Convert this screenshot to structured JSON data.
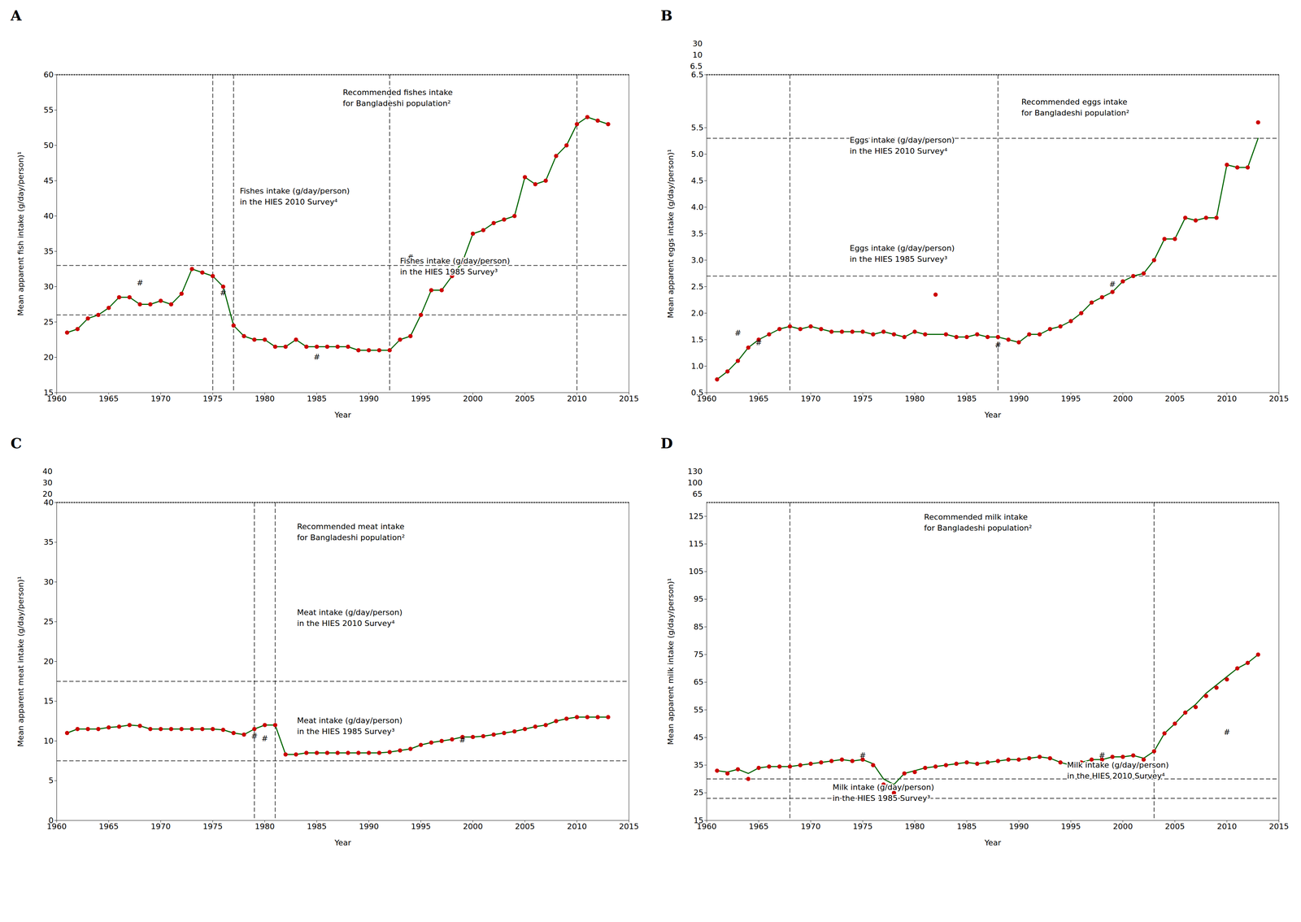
{
  "chart_data": [
    {
      "type": "line",
      "title": "A",
      "xlabel": "Year",
      "ylabel": "Mean apparent fish intake (g/day/person)¹",
      "xlim": [
        1960,
        2015
      ],
      "xticks": [
        1960,
        1965,
        1970,
        1975,
        1980,
        1985,
        1990,
        1995,
        2000,
        2005,
        2010,
        2015
      ],
      "ylim": [
        15,
        60
      ],
      "yticks": [
        15,
        20,
        25,
        30,
        35,
        40,
        45,
        50,
        55,
        60
      ],
      "grid": false,
      "x": [
        1961,
        1962,
        1963,
        1964,
        1965,
        1966,
        1967,
        1968,
        1969,
        1970,
        1971,
        1972,
        1973,
        1974,
        1975,
        1976,
        1977,
        1978,
        1979,
        1980,
        1981,
        1982,
        1983,
        1984,
        1985,
        1986,
        1987,
        1988,
        1989,
        1990,
        1991,
        1992,
        1993,
        1994,
        1995,
        1996,
        1997,
        1998,
        1999,
        2000,
        2001,
        2002,
        2003,
        2004,
        2005,
        2006,
        2007,
        2008,
        2009,
        2010,
        2011,
        2012,
        2013
      ],
      "series": [
        {
          "type": "line",
          "color": "#006400",
          "values": [
            23.5,
            24.0,
            25.5,
            26.0,
            27.0,
            28.5,
            28.5,
            27.5,
            27.5,
            28.0,
            27.5,
            29.0,
            32.5,
            32.0,
            31.5,
            30.0,
            24.5,
            23.0,
            22.5,
            22.5,
            21.5,
            21.5,
            22.5,
            21.5,
            21.5,
            21.5,
            21.5,
            21.5,
            21.0,
            21.0,
            21.0,
            21.0,
            22.5,
            23.0,
            26.0,
            29.5,
            29.5,
            31.5,
            33.5,
            37.5,
            38.0,
            39.0,
            39.5,
            40.0,
            45.5,
            44.5,
            45.0,
            48.5,
            50.0,
            53.0,
            54.0,
            53.5,
            53.0
          ]
        },
        {
          "type": "scatter",
          "color": "#cc0000",
          "values": [
            23.5,
            24.0,
            25.5,
            26.0,
            27.0,
            28.5,
            28.5,
            27.5,
            27.5,
            28.0,
            27.5,
            29.0,
            32.5,
            32.0,
            31.5,
            30.0,
            24.5,
            23.0,
            22.5,
            22.5,
            21.5,
            21.5,
            22.5,
            21.5,
            21.5,
            21.5,
            21.5,
            21.5,
            21.0,
            21.0,
            21.0,
            21.0,
            22.5,
            23.0,
            26.0,
            29.5,
            29.5,
            31.5,
            33.5,
            37.5,
            38.0,
            39.0,
            39.5,
            40.0,
            45.5,
            44.5,
            45.0,
            48.5,
            50.0,
            53.0,
            54.0,
            53.5,
            53.0
          ]
        }
      ],
      "reference_lines": [
        {
          "y": 60,
          "line_style": "dotted",
          "label": "Recommended fishes intake\nfor Bangladeshi population²"
        },
        {
          "y": 33,
          "line_style": "dashed",
          "label": "Fishes intake (g/day/person)\nin the HIES 2010 Survey⁴"
        },
        {
          "y": 26,
          "line_style": "dashed",
          "label": "Fishes intake (g/day/person)\nin the HIES 1985 Survey³"
        },
        {
          "x": 1975,
          "line_style": "dashed"
        },
        {
          "x": 1977,
          "line_style": "dashed"
        },
        {
          "x": 1992,
          "line_style": "dashed"
        },
        {
          "x": 2010,
          "line_style": "dashed"
        }
      ],
      "annotations": [
        {
          "text": "#",
          "x": 1968,
          "y": 30.2
        },
        {
          "text": "#",
          "x": 1976,
          "y": 28.8
        },
        {
          "text": "#",
          "x": 1985,
          "y": 19.7
        },
        {
          "text": "#",
          "x": 1994,
          "y": 33.8
        }
      ],
      "y_extra_labels": []
    },
    {
      "type": "line",
      "title": "B",
      "xlabel": "Year",
      "ylabel": "Mean apparent eggs intake (g/day/person)¹",
      "xlim": [
        1960,
        2015
      ],
      "xticks": [
        1960,
        1965,
        1970,
        1975,
        1980,
        1985,
        1990,
        1995,
        2000,
        2005,
        2010,
        2015
      ],
      "ylim": [
        0.5,
        6.5
      ],
      "yticks": [
        0.5,
        {
          "value": 1.0,
          "label": "1.0"
        },
        1.5,
        {
          "value": 2.0,
          "label": "2.0"
        },
        2.5,
        {
          "value": 3.0,
          "label": "3.0"
        },
        3.5,
        {
          "value": 4.0,
          "label": "4.0"
        },
        4.5,
        {
          "value": 5.0,
          "label": "5.0"
        },
        5.5,
        6.5
      ],
      "grid": false,
      "x": [
        1961,
        1962,
        1963,
        1964,
        1965,
        1966,
        1967,
        1968,
        1969,
        1970,
        1971,
        1972,
        1973,
        1974,
        1975,
        1976,
        1977,
        1978,
        1979,
        1980,
        1981,
        1982,
        1983,
        1984,
        1985,
        1986,
        1987,
        1988,
        1989,
        1990,
        1991,
        1992,
        1993,
        1994,
        1995,
        1996,
        1997,
        1998,
        1999,
        2000,
        2001,
        2002,
        2003,
        2004,
        2005,
        2006,
        2007,
        2008,
        2009,
        2010,
        2011,
        2012,
        2013
      ],
      "series": [
        {
          "type": "line",
          "color": "#006400",
          "values": [
            0.75,
            0.9,
            1.1,
            1.35,
            1.5,
            1.6,
            1.7,
            1.75,
            1.7,
            1.75,
            1.7,
            1.65,
            1.65,
            1.65,
            1.65,
            1.6,
            1.65,
            1.6,
            1.55,
            1.65,
            1.6,
            1.6,
            1.6,
            1.55,
            1.55,
            1.6,
            1.55,
            1.55,
            1.5,
            1.45,
            1.6,
            1.6,
            1.7,
            1.75,
            1.85,
            2.0,
            2.2,
            2.3,
            2.4,
            2.6,
            2.7,
            2.75,
            3.0,
            3.4,
            3.4,
            3.8,
            3.75,
            3.8,
            3.8,
            4.8,
            4.75,
            4.75,
            5.3
          ]
        },
        {
          "type": "scatter",
          "color": "#cc0000",
          "values": [
            0.75,
            0.9,
            1.1,
            1.35,
            1.5,
            1.6,
            1.7,
            1.75,
            1.7,
            1.75,
            1.7,
            1.65,
            1.65,
            1.65,
            1.65,
            1.6,
            1.65,
            1.6,
            1.55,
            1.65,
            1.6,
            2.35,
            1.6,
            1.55,
            1.55,
            1.6,
            1.55,
            1.55,
            1.5,
            1.45,
            1.6,
            1.6,
            1.7,
            1.75,
            1.85,
            2.0,
            2.2,
            2.3,
            2.4,
            2.6,
            2.7,
            2.75,
            3.0,
            3.4,
            3.4,
            3.8,
            3.75,
            3.8,
            3.8,
            4.8,
            4.75,
            4.75,
            5.6
          ]
        }
      ],
      "reference_lines": [
        {
          "y": 6.5,
          "line_style": "dotted",
          "label": "Recommended eggs intake\nfor Bangladeshi population²"
        },
        {
          "y": 5.3,
          "line_style": "dashed",
          "label": "Eggs intake (g/day/person)\nin the HIES 2010 Survey⁴"
        },
        {
          "y": 2.7,
          "line_style": "dashed",
          "label": "Eggs intake (g/day/person)\nin the HIES 1985 Survey³"
        },
        {
          "x": 1968,
          "line_style": "dashed"
        },
        {
          "x": 1988,
          "line_style": "dashed"
        }
      ],
      "annotations": [
        {
          "text": "#",
          "x": 1963,
          "y": 1.58
        },
        {
          "text": "#",
          "x": 1965,
          "y": 1.4
        },
        {
          "text": "#",
          "x": 1988,
          "y": 1.35
        },
        {
          "text": "#",
          "x": 1999,
          "y": 2.5
        }
      ],
      "y_extra_labels": [
        "30",
        "10",
        "6.5"
      ]
    },
    {
      "type": "line",
      "title": "C",
      "xlabel": "Year",
      "ylabel": "Mean apparent meat intake (g/day/person)¹",
      "xlim": [
        1960,
        2015
      ],
      "xticks": [
        1960,
        1965,
        1970,
        1975,
        1980,
        1985,
        1990,
        1995,
        2000,
        2005,
        2010,
        2015
      ],
      "ylim": [
        0,
        40
      ],
      "yticks": [
        0,
        5,
        10,
        15,
        20,
        25,
        30,
        35,
        40
      ],
      "grid": false,
      "x": [
        1961,
        1962,
        1963,
        1964,
        1965,
        1966,
        1967,
        1968,
        1969,
        1970,
        1971,
        1972,
        1973,
        1974,
        1975,
        1976,
        1977,
        1978,
        1979,
        1980,
        1981,
        1982,
        1983,
        1984,
        1985,
        1986,
        1987,
        1988,
        1989,
        1990,
        1991,
        1992,
        1993,
        1994,
        1995,
        1996,
        1997,
        1998,
        1999,
        2000,
        2001,
        2002,
        2003,
        2004,
        2005,
        2006,
        2007,
        2008,
        2009,
        2010,
        2011,
        2012,
        2013
      ],
      "series": [
        {
          "type": "line",
          "color": "#006400",
          "values": [
            11.0,
            11.5,
            11.5,
            11.5,
            11.7,
            11.8,
            12.0,
            11.9,
            11.5,
            11.5,
            11.5,
            11.5,
            11.5,
            11.5,
            11.5,
            11.4,
            11.0,
            10.8,
            11.5,
            12.0,
            12.0,
            8.3,
            8.3,
            8.5,
            8.5,
            8.5,
            8.5,
            8.5,
            8.5,
            8.5,
            8.5,
            8.6,
            8.8,
            9.0,
            9.5,
            9.8,
            10.0,
            10.2,
            10.5,
            10.5,
            10.6,
            10.8,
            11.0,
            11.2,
            11.5,
            11.8,
            12.0,
            12.5,
            12.8,
            13.0,
            13.0,
            13.0,
            13.0
          ]
        },
        {
          "type": "scatter",
          "color": "#cc0000",
          "values": [
            11.0,
            11.5,
            11.5,
            11.5,
            11.7,
            11.8,
            12.0,
            11.9,
            11.5,
            11.5,
            11.5,
            11.5,
            11.5,
            11.5,
            11.5,
            11.4,
            11.0,
            10.8,
            11.5,
            12.0,
            12.0,
            8.3,
            8.3,
            8.5,
            8.5,
            8.5,
            8.5,
            8.5,
            8.5,
            8.5,
            8.5,
            8.6,
            8.8,
            9.0,
            9.5,
            9.8,
            10.0,
            10.2,
            10.5,
            10.5,
            10.6,
            10.8,
            11.0,
            11.2,
            11.5,
            11.8,
            12.0,
            12.5,
            12.8,
            13.0,
            13.0,
            13.0,
            13.0
          ]
        }
      ],
      "reference_lines": [
        {
          "y": 40,
          "line_style": "dotted",
          "label": "Recommended meat intake\nfor Bangladeshi population²"
        },
        {
          "y": 17.5,
          "line_style": "dashed",
          "label": "Meat intake (g/day/person)\nin the HIES 2010 Survey⁴"
        },
        {
          "y": 7.5,
          "line_style": "dashed",
          "label": "Meat intake (g/day/person)\nin the HIES 1985 Survey³"
        },
        {
          "x": 1979,
          "line_style": "dashed"
        },
        {
          "x": 1981,
          "line_style": "dashed"
        }
      ],
      "annotations": [
        {
          "text": "#",
          "x": 1979,
          "y": 10.3
        },
        {
          "text": "#",
          "x": 1980,
          "y": 10.0
        },
        {
          "text": "#",
          "x": 1999,
          "y": 9.8
        }
      ],
      "y_extra_labels": [
        "40",
        "30",
        "20"
      ]
    },
    {
      "type": "line",
      "title": "D",
      "xlabel": "Year",
      "ylabel": "Mean apparent milk intake (g/day/person)¹",
      "xlim": [
        1960,
        2015
      ],
      "xticks": [
        1960,
        1965,
        1970,
        1975,
        1980,
        1985,
        1990,
        1995,
        2000,
        2005,
        2010,
        2015
      ],
      "ylim": [
        15,
        130
      ],
      "yticks": [
        15,
        25,
        35,
        45,
        55,
        65,
        75,
        85,
        95,
        105,
        115,
        125
      ],
      "grid": false,
      "x": [
        1961,
        1962,
        1963,
        1964,
        1965,
        1966,
        1967,
        1968,
        1969,
        1970,
        1971,
        1972,
        1973,
        1974,
        1975,
        1976,
        1977,
        1978,
        1979,
        1980,
        1981,
        1982,
        1983,
        1984,
        1985,
        1986,
        1987,
        1988,
        1989,
        1990,
        1991,
        1992,
        1993,
        1994,
        1995,
        1996,
        1997,
        1998,
        1999,
        2000,
        2001,
        2002,
        2003,
        2004,
        2005,
        2006,
        2007,
        2008,
        2009,
        2010,
        2011,
        2012,
        2013
      ],
      "series": [
        {
          "type": "line",
          "color": "#006400",
          "values": [
            33.0,
            32.5,
            33.5,
            32.0,
            34.0,
            34.5,
            34.5,
            34.5,
            35.0,
            35.5,
            36.0,
            36.5,
            37.0,
            36.5,
            37.0,
            35.5,
            30.0,
            28.0,
            32.0,
            33.0,
            34.0,
            34.5,
            35.0,
            35.5,
            36.0,
            35.5,
            36.0,
            36.5,
            37.0,
            37.0,
            37.5,
            38.0,
            37.5,
            36.0,
            35.0,
            36.0,
            37.0,
            37.0,
            38.0,
            38.0,
            38.5,
            37.5,
            40.0,
            46.5,
            50.0,
            54.0,
            57.0,
            61.0,
            64.0,
            67.0,
            70.0,
            72.0,
            75.0
          ]
        },
        {
          "type": "scatter",
          "color": "#cc0000",
          "values": [
            33.0,
            32.0,
            33.5,
            30.0,
            34.0,
            34.5,
            34.5,
            34.5,
            35.0,
            35.5,
            36.0,
            36.5,
            37.0,
            36.5,
            37.0,
            35.0,
            28.0,
            25.0,
            32.0,
            32.5,
            34.0,
            34.5,
            35.0,
            35.5,
            36.0,
            35.5,
            36.0,
            36.5,
            37.0,
            37.0,
            37.5,
            38.0,
            37.5,
            36.0,
            35.0,
            36.0,
            37.0,
            37.0,
            38.0,
            38.0,
            38.5,
            37.0,
            40.0,
            46.5,
            50.0,
            54.0,
            56.0,
            60.0,
            63.0,
            66.0,
            70.0,
            72.0,
            75.0
          ]
        }
      ],
      "reference_lines": [
        {
          "y": 130,
          "line_style": "dotted",
          "label": "Recommended milk intake\nfor Bangladeshi population²"
        },
        {
          "y": 30,
          "line_style": "dashed",
          "label": "Milk intake (g/day/person)\nin the HIES 2010 Survey⁴"
        },
        {
          "y": 23,
          "line_style": "dashed",
          "label": "Milk intake (g/day/person)\nin the HIES 1985 Survey³"
        },
        {
          "x": 1968,
          "line_style": "dashed"
        },
        {
          "x": 2003,
          "line_style": "dashed"
        }
      ],
      "annotations": [
        {
          "text": "#",
          "x": 1975,
          "y": 37.5
        },
        {
          "text": "#",
          "x": 1998,
          "y": 37.5
        },
        {
          "text": "#",
          "x": 2010,
          "y": 46.0
        }
      ],
      "y_extra_labels": [
        "130",
        "100",
        "65"
      ]
    }
  ]
}
